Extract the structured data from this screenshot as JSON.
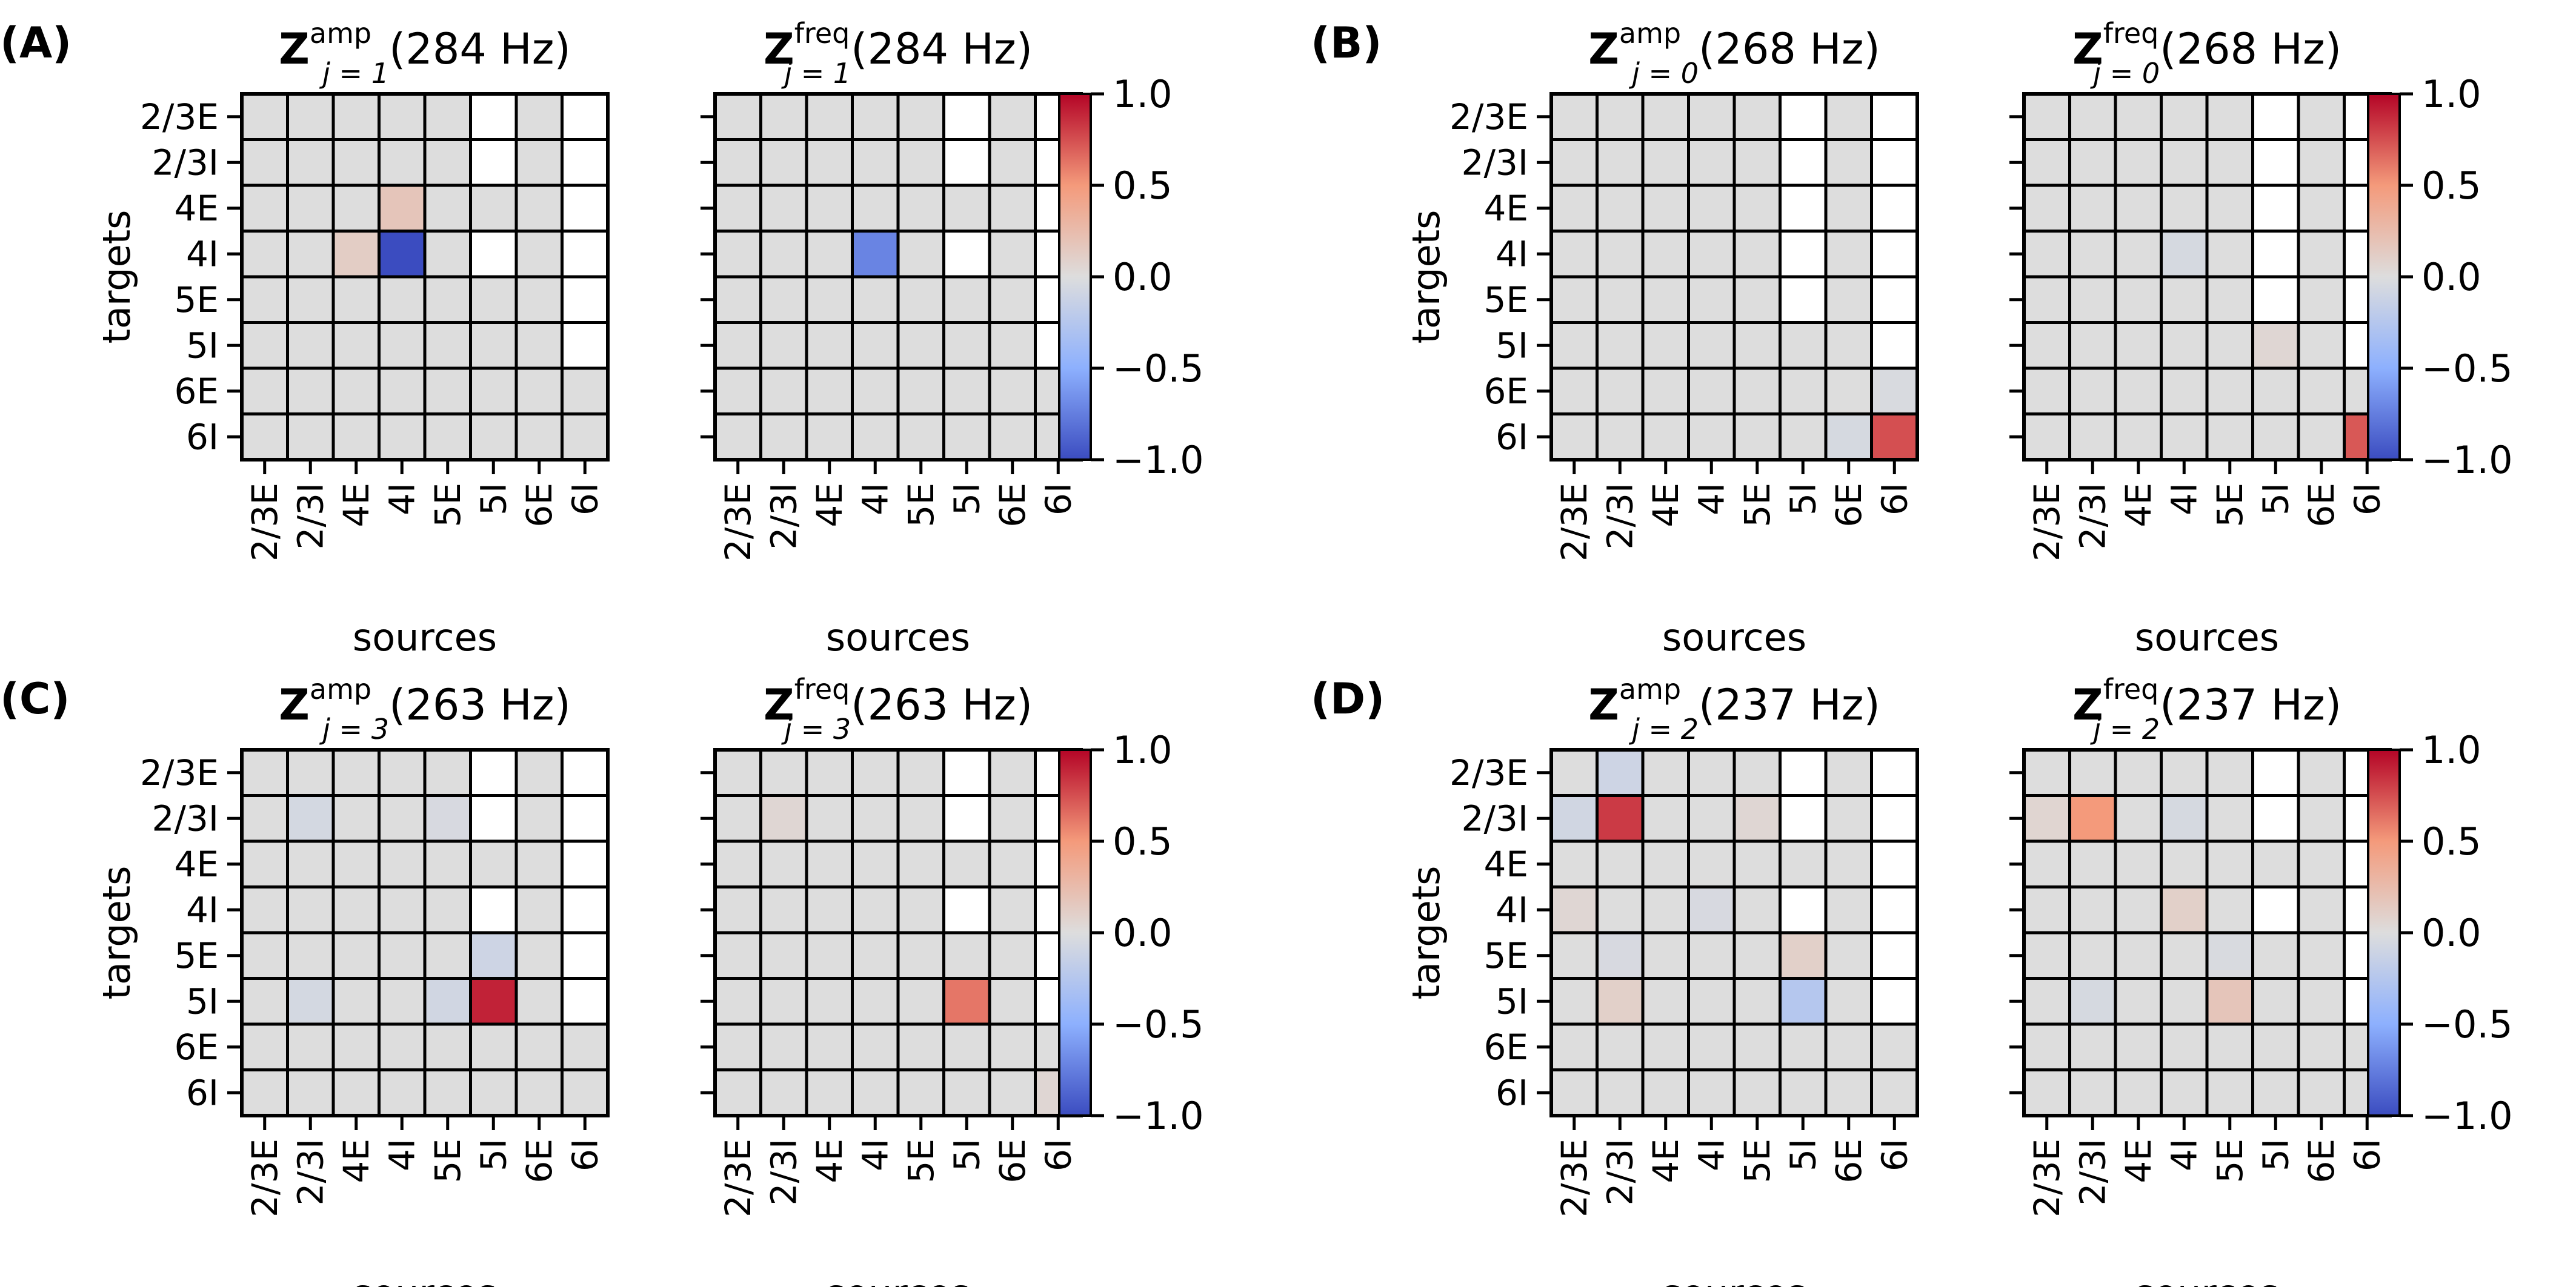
{
  "chart_data": {
    "type": "heatmap",
    "axis_labels": [
      "2/3E",
      "2/3I",
      "4E",
      "4I",
      "5E",
      "5I",
      "6E",
      "6I"
    ],
    "xlabel": "sources",
    "ylabel": "targets",
    "colorbar": {
      "colormap": "coolwarm",
      "min": -1.0,
      "max": 1.0,
      "ticks": [
        "1.0",
        "0.5",
        "0.0",
        "−0.5",
        "−1.0"
      ]
    },
    "colors": {
      "masked": "#ffffff",
      "grid": "#000000"
    },
    "panels": [
      {
        "tag": "(A)",
        "frequency": "284 Hz",
        "j": "1",
        "matrices": [
          {
            "kind": "amp",
            "nonzero": [
              [
                2,
                3,
                0.18
              ],
              [
                3,
                2,
                0.12
              ],
              [
                3,
                3,
                -1.0
              ]
            ]
          },
          {
            "kind": "freq",
            "nonzero": [
              [
                3,
                3,
                -0.72
              ]
            ]
          }
        ],
        "masked": [
          [
            0,
            5
          ],
          [
            0,
            7
          ],
          [
            1,
            5
          ],
          [
            1,
            7
          ],
          [
            2,
            7
          ],
          [
            3,
            5
          ],
          [
            3,
            7
          ],
          [
            4,
            7
          ],
          [
            5,
            7
          ]
        ]
      },
      {
        "tag": "(B)",
        "frequency": "268 Hz",
        "j": "0",
        "matrices": [
          {
            "kind": "amp",
            "nonzero": [
              [
                3,
                5,
                -0.03
              ],
              [
                6,
                7,
                -0.03
              ],
              [
                7,
                6,
                -0.05
              ],
              [
                7,
                7,
                0.75
              ]
            ]
          },
          {
            "kind": "freq",
            "nonzero": [
              [
                3,
                3,
                -0.05
              ],
              [
                5,
                5,
                0.05
              ],
              [
                7,
                7,
                0.72
              ]
            ]
          }
        ],
        "masked": [
          [
            0,
            5
          ],
          [
            0,
            7
          ],
          [
            1,
            5
          ],
          [
            1,
            7
          ],
          [
            2,
            5
          ],
          [
            2,
            7
          ],
          [
            3,
            5
          ],
          [
            3,
            7
          ],
          [
            4,
            5
          ],
          [
            4,
            7
          ],
          [
            5,
            7
          ]
        ]
      },
      {
        "tag": "(C)",
        "frequency": "263 Hz",
        "j": "3",
        "matrices": [
          {
            "kind": "amp",
            "nonzero": [
              [
                1,
                1,
                -0.06
              ],
              [
                1,
                4,
                -0.04
              ],
              [
                4,
                5,
                -0.1
              ],
              [
                5,
                1,
                -0.06
              ],
              [
                5,
                4,
                -0.08
              ],
              [
                5,
                5,
                0.9
              ]
            ]
          },
          {
            "kind": "freq",
            "nonzero": [
              [
                1,
                1,
                0.05
              ],
              [
                5,
                5,
                0.62
              ],
              [
                7,
                7,
                0.05
              ]
            ]
          }
        ],
        "masked": [
          [
            0,
            5
          ],
          [
            0,
            7
          ],
          [
            1,
            5
          ],
          [
            1,
            7
          ],
          [
            2,
            7
          ],
          [
            3,
            5
          ],
          [
            3,
            7
          ],
          [
            4,
            7
          ],
          [
            5,
            7
          ]
        ]
      },
      {
        "tag": "(D)",
        "frequency": "237 Hz",
        "j": "2",
        "matrices": [
          {
            "kind": "amp",
            "nonzero": [
              [
                0,
                1,
                -0.1
              ],
              [
                1,
                0,
                -0.08
              ],
              [
                1,
                1,
                0.82
              ],
              [
                1,
                4,
                0.05
              ],
              [
                3,
                0,
                0.05
              ],
              [
                3,
                3,
                -0.04
              ],
              [
                4,
                1,
                -0.04
              ],
              [
                4,
                5,
                0.1
              ],
              [
                5,
                1,
                0.1
              ],
              [
                5,
                5,
                -0.25
              ]
            ]
          },
          {
            "kind": "freq",
            "nonzero": [
              [
                1,
                0,
                0.06
              ],
              [
                1,
                1,
                0.5
              ],
              [
                1,
                3,
                -0.05
              ],
              [
                3,
                3,
                0.1
              ],
              [
                4,
                4,
                -0.03
              ],
              [
                5,
                1,
                -0.05
              ],
              [
                5,
                4,
                0.18
              ]
            ]
          }
        ],
        "masked": [
          [
            0,
            5
          ],
          [
            0,
            7
          ],
          [
            1,
            5
          ],
          [
            1,
            7
          ],
          [
            2,
            7
          ],
          [
            3,
            5
          ],
          [
            3,
            7
          ],
          [
            4,
            7
          ],
          [
            5,
            7
          ]
        ]
      }
    ]
  }
}
